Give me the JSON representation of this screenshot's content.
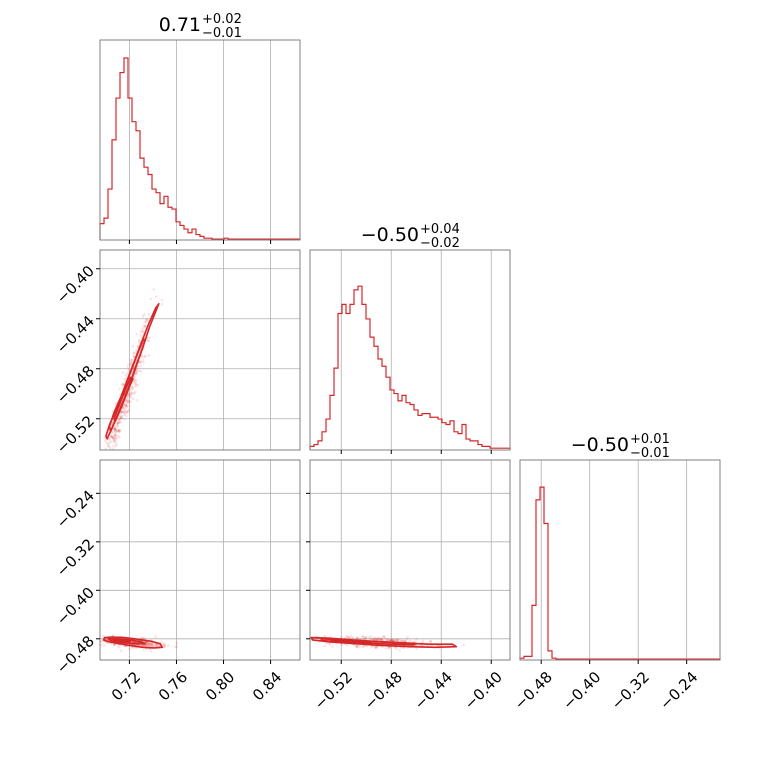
{
  "colors": {
    "series": "#d62728",
    "grid": "#b0b0b0",
    "frame": "#808080"
  },
  "chart_data": {
    "type": "corner",
    "titles": [
      {
        "main": "0.71",
        "plus": "+0.02",
        "minus": "−0.01"
      },
      {
        "main": "−0.50",
        "plus": "+0.04",
        "minus": "−0.02"
      },
      {
        "main": "−0.50",
        "plus": "+0.01",
        "minus": "−0.01"
      }
    ],
    "params": [
      {
        "range": [
          0.695,
          0.865
        ],
        "ticks": [
          0.72,
          0.76,
          0.8,
          0.84
        ],
        "tick_labels": [
          "0.72",
          "0.76",
          "0.80",
          "0.84"
        ]
      },
      {
        "range": [
          -0.545,
          -0.385
        ],
        "ticks": [
          -0.52,
          -0.48,
          -0.44,
          -0.4
        ],
        "tick_labels": [
          "−0.52",
          "−0.48",
          "−0.44",
          "−0.40"
        ]
      },
      {
        "range": [
          -0.515,
          -0.185
        ],
        "ticks": [
          -0.48,
          -0.4,
          -0.32,
          -0.24
        ],
        "tick_labels": [
          "−0.48",
          "−0.40",
          "−0.32",
          "−0.24"
        ]
      }
    ],
    "histograms": [
      {
        "edges": [
          0.695,
          0.865
        ],
        "counts": [
          0.09,
          0.12,
          0.28,
          0.55,
          0.78,
          0.92,
          1.0,
          0.78,
          0.65,
          0.6,
          0.45,
          0.4,
          0.36,
          0.28,
          0.26,
          0.2,
          0.24,
          0.18,
          0.17,
          0.1,
          0.08,
          0.06,
          0.04,
          0.06,
          0.03,
          0.02,
          0.01,
          0.01,
          0.005,
          0.005,
          0.005,
          0.01,
          0.005,
          0.005,
          0.005,
          0.005,
          0.005,
          0.005,
          0.005,
          0.005,
          0.005,
          0.005,
          0.005,
          0.005,
          0.005,
          0.005,
          0.005,
          0.005,
          0.005,
          0.005
        ]
      },
      {
        "edges": [
          -0.545,
          -0.385
        ],
        "counts": [
          0.02,
          0.03,
          0.05,
          0.1,
          0.17,
          0.3,
          0.45,
          0.75,
          0.8,
          0.75,
          0.8,
          0.88,
          0.9,
          0.8,
          0.72,
          0.62,
          0.57,
          0.5,
          0.46,
          0.4,
          0.33,
          0.31,
          0.27,
          0.3,
          0.26,
          0.25,
          0.22,
          0.19,
          0.2,
          0.2,
          0.18,
          0.18,
          0.17,
          0.15,
          0.14,
          0.16,
          0.1,
          0.09,
          0.14,
          0.06,
          0.05,
          0.05,
          0.03,
          0.02,
          0.02,
          0.01,
          0.01,
          0.01,
          0.01,
          0.01
        ]
      },
      {
        "edges": [
          -0.515,
          -0.185
        ],
        "counts": [
          0.01,
          0.02,
          0.02,
          0.3,
          0.88,
          0.95,
          0.75,
          0.05,
          0.01,
          0.005,
          0.005,
          0.005,
          0.005,
          0.005,
          0.005,
          0.005,
          0.005,
          0.005,
          0.005,
          0.005,
          0.005,
          0.005,
          0.005,
          0.005,
          0.005,
          0.005,
          0.005,
          0.005,
          0.005,
          0.005,
          0.005,
          0.005,
          0.005,
          0.005,
          0.005,
          0.005,
          0.005,
          0.005,
          0.005,
          0.005,
          0.005,
          0.005,
          0.005,
          0.005,
          0.005,
          0.005,
          0.005,
          0.005,
          0.005,
          0.005
        ]
      }
    ],
    "contours": [
      {
        "row": 1,
        "col": 0,
        "levels": [
          [
            [
              0.701,
              -0.536
            ],
            [
              0.705,
              -0.528
            ],
            [
              0.712,
              -0.513
            ],
            [
              0.718,
              -0.499
            ],
            [
              0.724,
              -0.482
            ],
            [
              0.731,
              -0.464
            ],
            [
              0.737,
              -0.447
            ],
            [
              0.742,
              -0.435
            ],
            [
              0.745,
              -0.428
            ],
            [
              0.742,
              -0.432
            ],
            [
              0.736,
              -0.445
            ],
            [
              0.729,
              -0.462
            ],
            [
              0.722,
              -0.48
            ],
            [
              0.715,
              -0.498
            ],
            [
              0.709,
              -0.512
            ],
            [
              0.703,
              -0.525
            ],
            [
              0.7,
              -0.534
            ],
            [
              0.701,
              -0.536
            ]
          ],
          [
            [
              0.704,
              -0.53
            ],
            [
              0.709,
              -0.519
            ],
            [
              0.716,
              -0.503
            ],
            [
              0.722,
              -0.488
            ],
            [
              0.728,
              -0.472
            ],
            [
              0.733,
              -0.458
            ],
            [
              0.732,
              -0.456
            ],
            [
              0.726,
              -0.47
            ],
            [
              0.719,
              -0.487
            ],
            [
              0.713,
              -0.502
            ],
            [
              0.707,
              -0.515
            ],
            [
              0.703,
              -0.526
            ],
            [
              0.704,
              -0.53
            ]
          ],
          [
            [
              0.708,
              -0.522
            ],
            [
              0.713,
              -0.511
            ],
            [
              0.718,
              -0.499
            ],
            [
              0.723,
              -0.488
            ],
            [
              0.721,
              -0.487
            ],
            [
              0.716,
              -0.498
            ],
            [
              0.711,
              -0.51
            ],
            [
              0.707,
              -0.52
            ],
            [
              0.708,
              -0.522
            ]
          ]
        ],
        "scatter_center": [
          0.716,
          -0.505
        ],
        "scatter_cov": [
          [
            0.00013,
            0.00036
          ],
          [
            0.00036,
            0.0011
          ]
        ],
        "scatter_n": 480
      },
      {
        "row": 2,
        "col": 0,
        "levels": [
          [
            [
              0.699,
              -0.478
            ],
            [
              0.706,
              -0.477
            ],
            [
              0.716,
              -0.478
            ],
            [
              0.728,
              -0.481
            ],
            [
              0.738,
              -0.484
            ],
            [
              0.746,
              -0.488
            ],
            [
              0.748,
              -0.494
            ],
            [
              0.741,
              -0.495
            ],
            [
              0.731,
              -0.494
            ],
            [
              0.721,
              -0.491
            ],
            [
              0.711,
              -0.488
            ],
            [
              0.703,
              -0.485
            ],
            [
              0.698,
              -0.482
            ],
            [
              0.699,
              -0.478
            ]
          ],
          [
            [
              0.702,
              -0.48
            ],
            [
              0.711,
              -0.48
            ],
            [
              0.721,
              -0.482
            ],
            [
              0.73,
              -0.485
            ],
            [
              0.733,
              -0.488
            ],
            [
              0.724,
              -0.488
            ],
            [
              0.714,
              -0.486
            ],
            [
              0.705,
              -0.484
            ],
            [
              0.702,
              -0.48
            ]
          ],
          [
            [
              0.706,
              -0.481
            ],
            [
              0.714,
              -0.482
            ],
            [
              0.721,
              -0.484
            ],
            [
              0.716,
              -0.485
            ],
            [
              0.708,
              -0.484
            ],
            [
              0.706,
              -0.481
            ]
          ]
        ],
        "scatter_center": [
          0.72,
          -0.486
        ],
        "scatter_cov": [
          [
            0.00018,
            -3e-05
          ],
          [
            -3e-05,
            2e-05
          ]
        ],
        "scatter_n": 420
      },
      {
        "row": 2,
        "col": 1,
        "levels": [
          [
            [
              -0.544,
              -0.478
            ],
            [
              -0.53,
              -0.479
            ],
            [
              -0.51,
              -0.482
            ],
            [
              -0.49,
              -0.485
            ],
            [
              -0.47,
              -0.487
            ],
            [
              -0.45,
              -0.489
            ],
            [
              -0.431,
              -0.489
            ],
            [
              -0.428,
              -0.493
            ],
            [
              -0.445,
              -0.494
            ],
            [
              -0.465,
              -0.493
            ],
            [
              -0.488,
              -0.491
            ],
            [
              -0.51,
              -0.488
            ],
            [
              -0.53,
              -0.485
            ],
            [
              -0.543,
              -0.482
            ],
            [
              -0.544,
              -0.478
            ]
          ],
          [
            [
              -0.536,
              -0.48
            ],
            [
              -0.518,
              -0.482
            ],
            [
              -0.498,
              -0.484
            ],
            [
              -0.478,
              -0.486
            ],
            [
              -0.46,
              -0.488
            ],
            [
              -0.462,
              -0.49
            ],
            [
              -0.482,
              -0.489
            ],
            [
              -0.502,
              -0.487
            ],
            [
              -0.522,
              -0.485
            ],
            [
              -0.536,
              -0.483
            ],
            [
              -0.536,
              -0.48
            ]
          ],
          [
            [
              -0.528,
              -0.481
            ],
            [
              -0.512,
              -0.483
            ],
            [
              -0.496,
              -0.485
            ],
            [
              -0.498,
              -0.486
            ],
            [
              -0.514,
              -0.485
            ],
            [
              -0.528,
              -0.483
            ],
            [
              -0.528,
              -0.481
            ]
          ]
        ],
        "scatter_center": [
          -0.49,
          -0.486
        ],
        "scatter_cov": [
          [
            0.00045,
            -4e-05
          ],
          [
            -4e-05,
            2e-05
          ]
        ],
        "scatter_n": 480
      }
    ]
  }
}
